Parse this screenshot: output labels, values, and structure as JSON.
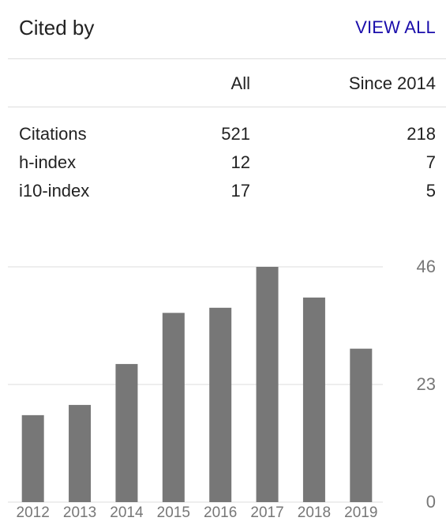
{
  "header": {
    "title": "Cited by",
    "view_all": "VIEW ALL"
  },
  "table": {
    "columns": [
      "",
      "All",
      "Since 2014"
    ],
    "rows": [
      {
        "label": "Citations",
        "all": "521",
        "since": "218"
      },
      {
        "label": "h-index",
        "all": "12",
        "since": "7"
      },
      {
        "label": "i10-index",
        "all": "17",
        "since": "5"
      }
    ]
  },
  "chart_data": {
    "type": "bar",
    "categories": [
      "2012",
      "2013",
      "2014",
      "2015",
      "2016",
      "2017",
      "2018",
      "2019"
    ],
    "values": [
      17,
      19,
      27,
      37,
      38,
      46,
      40,
      30
    ],
    "ylim": [
      0,
      46
    ],
    "yticks": [
      "0",
      "23",
      "46"
    ],
    "grid": true,
    "bar_color": "#777777",
    "grid_color": "#dddddd"
  }
}
